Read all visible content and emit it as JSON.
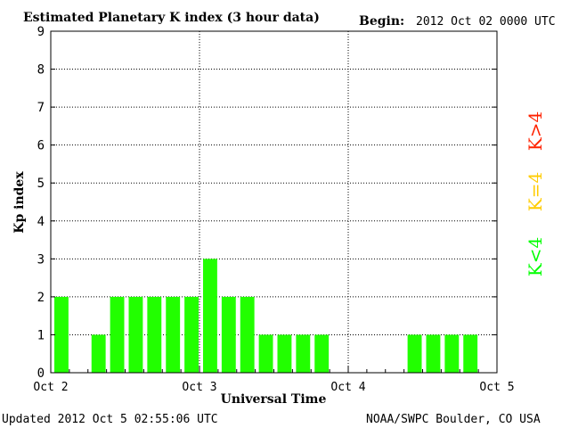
{
  "chart_data": {
    "type": "bar",
    "title": "Estimated Planetary K index (3 hour data)",
    "begin_label": "Begin:",
    "begin_value": "2012 Oct 02 0000 UTC",
    "xlabel": "Universal Time",
    "ylabel": "Kp index",
    "ylim": [
      0,
      9
    ],
    "yticks": [
      "0",
      "1",
      "2",
      "3",
      "4",
      "5",
      "6",
      "7",
      "8",
      "9"
    ],
    "xlim_hours": [
      0,
      72
    ],
    "xticks": [
      {
        "hour": 0,
        "label": "Oct 2"
      },
      {
        "hour": 24,
        "label": "Oct 3"
      },
      {
        "hour": 48,
        "label": "Oct 4"
      },
      {
        "hour": 72,
        "label": "Oct 5"
      }
    ],
    "interval_hours": 3,
    "values": [
      2,
      0,
      1,
      2,
      2,
      2,
      2,
      2,
      3,
      2,
      2,
      1,
      1,
      1,
      1,
      0,
      0,
      0,
      0,
      1,
      1,
      1,
      1,
      0
    ],
    "grid": true,
    "legend": [
      {
        "label": "K<4",
        "color": "#00ff00"
      },
      {
        "label": "K=4",
        "color": "#ffcc00"
      },
      {
        "label": "K>4",
        "color": "#ff2200"
      }
    ],
    "bar_color": "#22ff00",
    "footer_left": "Updated 2012 Oct  5 02:55:06 UTC",
    "footer_right": "NOAA/SWPC Boulder, CO USA"
  }
}
